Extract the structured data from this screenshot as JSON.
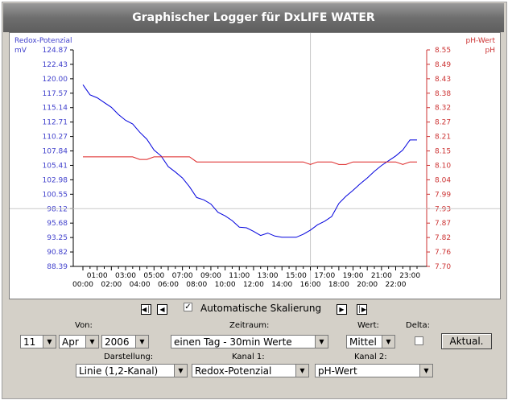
{
  "window": {
    "title": "Graphischer Logger für DxLIFE WATER"
  },
  "chart_data": {
    "type": "line",
    "left_axis": {
      "title": "Redox-Potenzial",
      "unit": "mV",
      "ticks": [
        "124.87",
        "122.43",
        "120.00",
        "117.57",
        "115.14",
        "112.71",
        "110.27",
        "107.84",
        "105.41",
        "102.98",
        "100.55",
        "98.12",
        "95.68",
        "93.25",
        "90.82",
        "88.39"
      ],
      "ylim": [
        88.39,
        124.87
      ],
      "color": "#4040cc"
    },
    "right_axis": {
      "title": "pH-Wert",
      "unit": "pH",
      "ticks": [
        "8.55",
        "8.49",
        "8.43",
        "8.38",
        "8.32",
        "8.27",
        "8.21",
        "8.15",
        "8.10",
        "8.04",
        "7.99",
        "7.93",
        "7.87",
        "7.82",
        "7.76",
        "7.70"
      ],
      "ylim": [
        7.7,
        8.55
      ],
      "color": "#cc3333"
    },
    "x_ticks_top": [
      "01:00",
      "03:00",
      "05:00",
      "07:00",
      "09:00",
      "11:00",
      "13:00",
      "15:00",
      "17:00",
      "19:00",
      "21:00",
      "23:00"
    ],
    "x_ticks_bottom": [
      "00:00",
      "02:00",
      "04:00",
      "06:00",
      "08:00",
      "10:00",
      "12:00",
      "14:00",
      "16:00",
      "18:00",
      "20:00",
      "22:00"
    ],
    "xlim": [
      0,
      23.5
    ],
    "cursor_x": 16.0,
    "cursor_y": 98.12,
    "series": [
      {
        "name": "Redox-Potenzial",
        "axis": "left",
        "color": "#0000dd",
        "x": [
          0,
          0.5,
          1,
          1.5,
          2,
          2.5,
          3,
          3.5,
          4,
          4.5,
          5,
          5.5,
          6,
          6.5,
          7,
          7.5,
          8,
          8.5,
          9,
          9.5,
          10,
          10.5,
          11,
          11.5,
          12,
          12.5,
          13,
          13.5,
          14,
          14.5,
          15,
          15.5,
          16,
          16.5,
          17,
          17.5,
          18,
          18.5,
          19,
          19.5,
          20,
          20.5,
          21,
          21.5,
          22,
          22.5,
          23,
          23.5
        ],
        "y": [
          119.0,
          117.3,
          116.8,
          116.0,
          115.2,
          114.0,
          113.0,
          112.4,
          111.0,
          109.8,
          108.0,
          107.0,
          105.2,
          104.3,
          103.3,
          101.8,
          100.0,
          99.6,
          98.9,
          97.5,
          96.9,
          96.1,
          95.0,
          94.9,
          94.3,
          93.6,
          94.0,
          93.5,
          93.3,
          93.3,
          93.3,
          93.8,
          94.5,
          95.4,
          96.0,
          96.8,
          99.0,
          100.2,
          101.2,
          102.3,
          103.3,
          104.4,
          105.4,
          106.2,
          107.0,
          108.0,
          109.7,
          109.7
        ]
      },
      {
        "name": "pH-Wert",
        "axis": "right",
        "color": "#dd2222",
        "x": [
          0,
          0.5,
          1,
          1.5,
          2,
          2.5,
          3,
          3.5,
          4,
          4.5,
          5,
          5.5,
          6,
          6.5,
          7,
          7.5,
          8,
          8.5,
          9,
          9.5,
          10,
          10.5,
          11,
          11.5,
          12,
          12.5,
          13,
          13.5,
          14,
          14.5,
          15,
          15.5,
          16,
          16.5,
          17,
          17.5,
          18,
          18.5,
          19,
          19.5,
          20,
          20.5,
          21,
          21.5,
          22,
          22.5,
          23,
          23.5
        ],
        "y": [
          8.13,
          8.13,
          8.13,
          8.13,
          8.13,
          8.13,
          8.13,
          8.13,
          8.12,
          8.12,
          8.13,
          8.13,
          8.13,
          8.13,
          8.13,
          8.13,
          8.11,
          8.11,
          8.11,
          8.11,
          8.11,
          8.11,
          8.11,
          8.11,
          8.11,
          8.11,
          8.11,
          8.11,
          8.11,
          8.11,
          8.11,
          8.11,
          8.1,
          8.11,
          8.11,
          8.11,
          8.1,
          8.1,
          8.11,
          8.11,
          8.11,
          8.11,
          8.11,
          8.11,
          8.11,
          8.1,
          8.11,
          8.11
        ]
      }
    ]
  },
  "nav": {
    "auto_scale_label": "Automatische Skalierung",
    "auto_scale_checked": true
  },
  "controls": {
    "von_label": "Von:",
    "day": "11",
    "month": "Apr",
    "year": "2006",
    "zeitraum_label": "Zeitraum:",
    "zeitraum": "einen Tag - 30min Werte",
    "wert_label": "Wert:",
    "wert": "Mittel",
    "delta_label": "Delta:",
    "delta_checked": false,
    "update_label": "Aktual.",
    "darstellung_label": "Darstellung:",
    "darstellung": "Linie (1,2-Kanal)",
    "kanal1_label": "Kanal 1:",
    "kanal1": "Redox-Potenzial",
    "kanal2_label": "Kanal 2:",
    "kanal2": "pH-Wert"
  }
}
